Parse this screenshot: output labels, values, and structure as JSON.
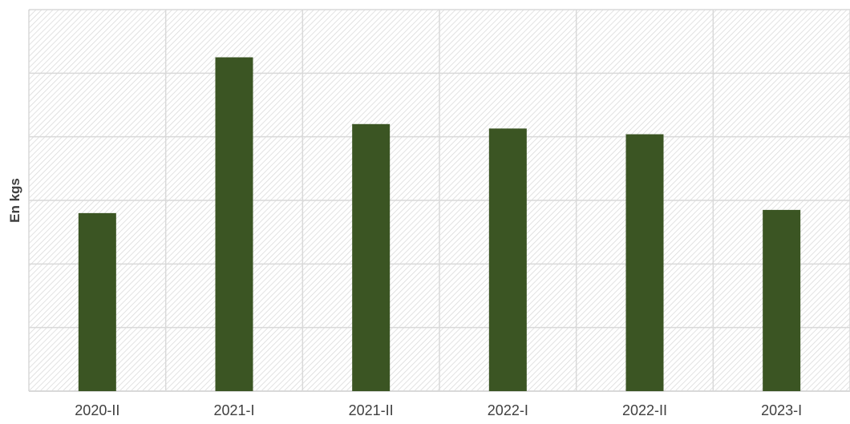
{
  "chart_data": {
    "type": "bar",
    "title": "",
    "xlabel": "",
    "ylabel": "En kgs",
    "categories": [
      "2020-II",
      "2021-I",
      "2021-II",
      "2022-I",
      "2022-II",
      "2023-I"
    ],
    "values": [
      2.8,
      5.25,
      4.2,
      4.13,
      4.04,
      2.85
    ],
    "ylim": [
      0,
      6
    ],
    "grid": true,
    "legend": "none",
    "colors": {
      "bar": "#3b5523",
      "grid": "#d9d9d9",
      "hatch": "#d4d4d4",
      "text": "#404040"
    }
  }
}
